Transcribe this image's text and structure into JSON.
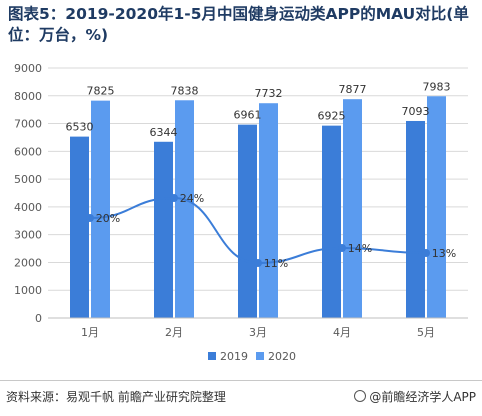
{
  "title": "图表5：2019-2020年1-5月中国健身运动类APP的MAU对比(单位：万台，%)",
  "source": "资料来源：易观千帆 前瞻产业研究院整理",
  "brand": "@前瞻经济学人APP",
  "colors": {
    "bar_2019": "#3b7dd8",
    "bar_2020": "#5b9bef",
    "growth_line": "#3b7dd8",
    "axis_text": "#595959",
    "grid": "#d9d9d9"
  },
  "chart_data": {
    "type": "bar",
    "categories": [
      "1月",
      "2月",
      "3月",
      "4月",
      "5月"
    ],
    "series": [
      {
        "name": "2019",
        "values": [
          6530,
          6344,
          6961,
          6925,
          7093
        ]
      },
      {
        "name": "2020",
        "values": [
          7825,
          7838,
          7732,
          7877,
          7983
        ]
      }
    ],
    "growth": {
      "type": "line",
      "values": [
        20,
        24,
        11,
        14,
        13
      ],
      "labels": [
        "20%",
        "24%",
        "11%",
        "14%",
        "13%"
      ]
    },
    "ylim": [
      0,
      9000
    ],
    "yticks": [
      "0",
      "1000",
      "2000",
      "3000",
      "4000",
      "5000",
      "6000",
      "7000",
      "8000",
      "9000"
    ],
    "grid": true,
    "legend_position": "bottom"
  }
}
